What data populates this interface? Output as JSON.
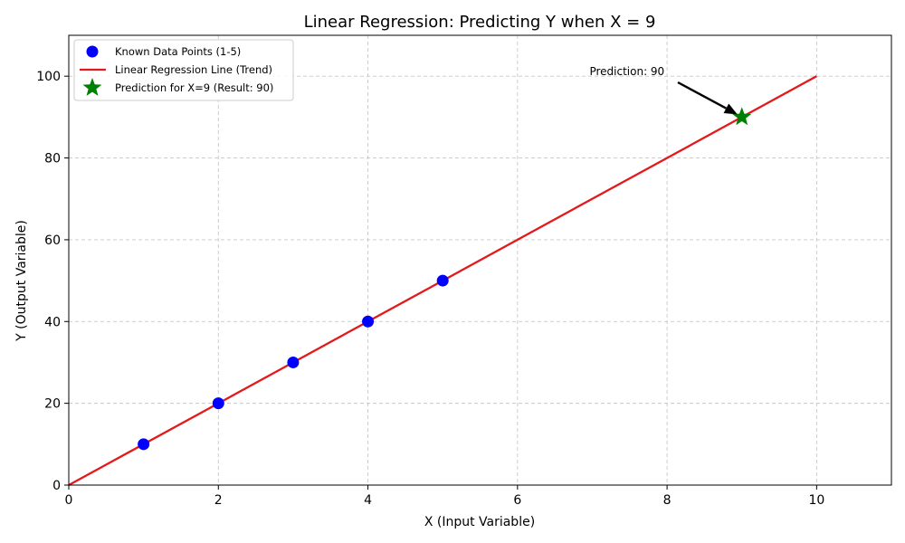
{
  "chart_data": {
    "type": "scatter",
    "title": "Linear Regression: Predicting Y when X = 9",
    "xlabel": "X (Input Variable)",
    "ylabel": "Y (Output Variable)",
    "xlim": [
      0,
      11
    ],
    "ylim": [
      0,
      110
    ],
    "xticks": [
      0,
      2,
      4,
      6,
      8,
      10
    ],
    "yticks": [
      0,
      20,
      40,
      60,
      80,
      100
    ],
    "grid": true,
    "legend_position": "top-left",
    "series": [
      {
        "name": "Known Data Points (1-5)",
        "kind": "scatter",
        "color": "#0000ff",
        "x": [
          1,
          2,
          3,
          4,
          5
        ],
        "y": [
          10,
          20,
          30,
          40,
          50
        ]
      },
      {
        "name": "Linear Regression Line (Trend)",
        "kind": "line",
        "color": "#e31a1c",
        "x": [
          0,
          10
        ],
        "y": [
          0,
          100
        ]
      },
      {
        "name": "Prediction for X=9 (Result: 90)",
        "kind": "star",
        "color": "#008000",
        "x": [
          9
        ],
        "y": [
          90
        ]
      }
    ],
    "annotation": {
      "text": "Prediction: 90",
      "point": [
        9,
        90
      ],
      "text_at": [
        7,
        100
      ]
    }
  }
}
